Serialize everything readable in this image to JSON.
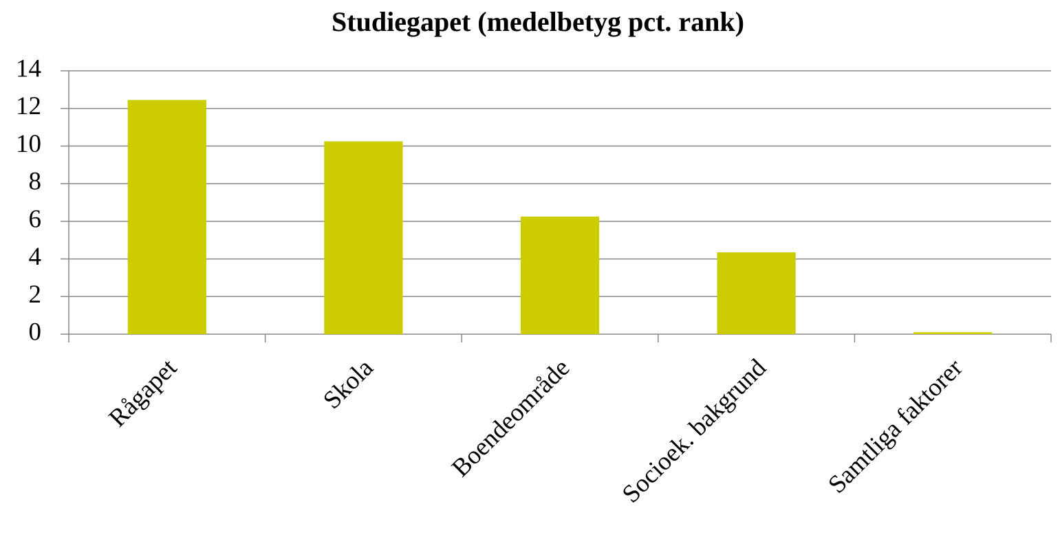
{
  "chart_data": {
    "type": "bar",
    "title": "Studiegapet (medelbetyg pct. rank)",
    "categories": [
      "Rågapet",
      "Skola",
      "Boendeområde",
      "Socioek. bakgrund",
      "Samtliga faktorer"
    ],
    "values": [
      12.45,
      10.25,
      6.25,
      4.35,
      0.1
    ],
    "color": "#cccc00",
    "ylim": [
      0,
      14
    ],
    "yticks": [
      0,
      2,
      4,
      6,
      8,
      10,
      12,
      14
    ],
    "grid": true
  }
}
